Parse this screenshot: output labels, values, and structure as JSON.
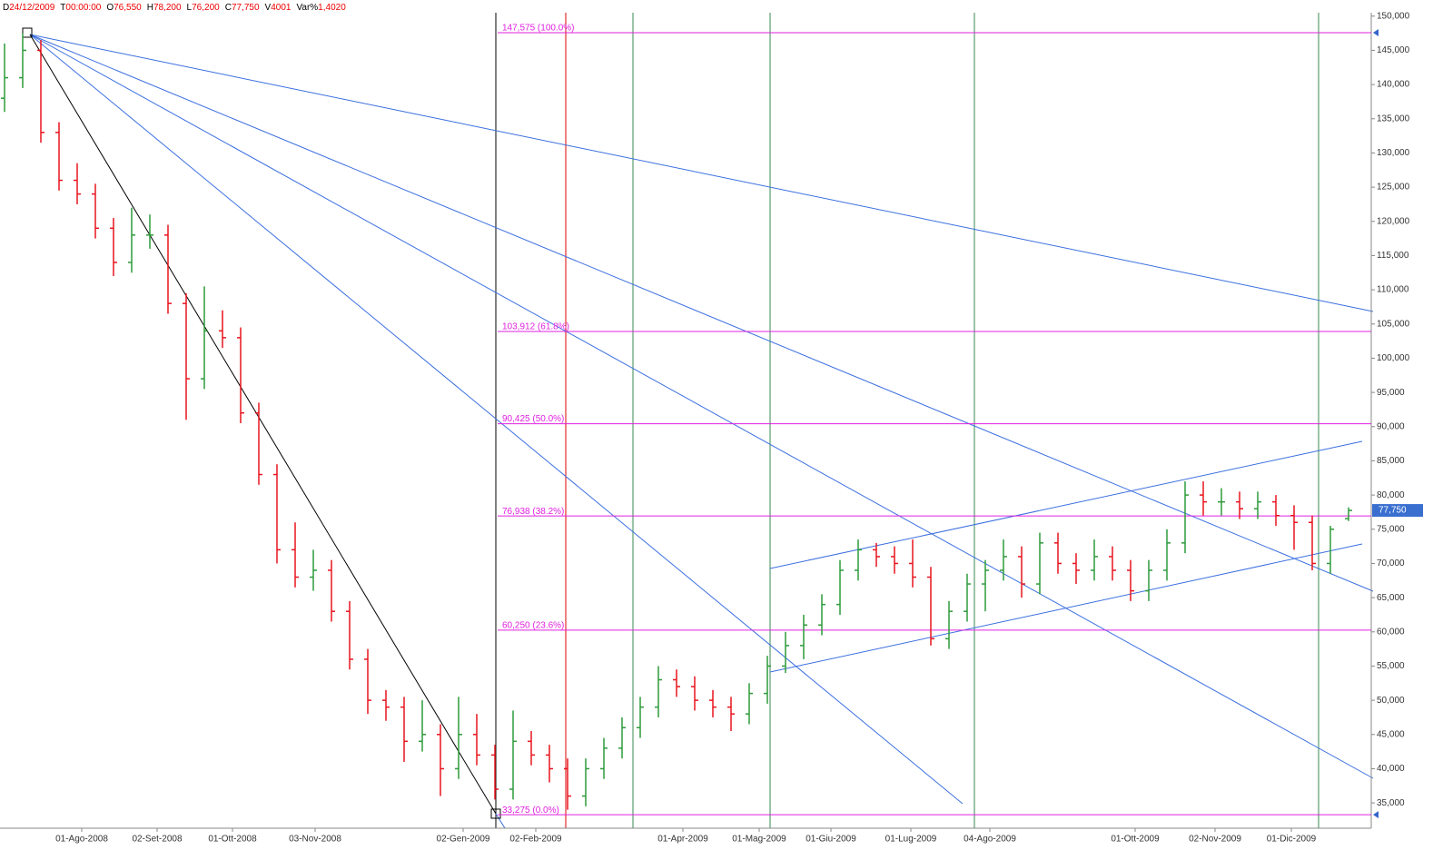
{
  "chart_data": {
    "type": "ohlc",
    "header": [
      {
        "key": "D",
        "value": "24/12/2009"
      },
      {
        "key": "T",
        "value": "00:00:00"
      },
      {
        "key": "O",
        "value": "76,550"
      },
      {
        "key": "H",
        "value": "78,200"
      },
      {
        "key": "L",
        "value": "76,200"
      },
      {
        "key": "C",
        "value": "77,750"
      },
      {
        "key": "V",
        "value": "4001"
      },
      {
        "key": "Var%",
        "value": "1,4020"
      }
    ],
    "up_color": "#2e9a3a",
    "down_color": "#e8141e",
    "open": [
      138,
      141,
      145,
      133,
      126,
      124,
      119,
      114,
      118,
      118,
      108,
      97,
      104,
      103,
      92,
      83,
      72,
      68,
      69,
      63,
      56,
      50,
      49,
      44,
      45,
      40,
      45,
      42,
      37,
      44,
      42,
      40,
      36,
      40,
      43,
      46,
      49,
      53,
      52,
      50,
      49,
      48,
      51,
      55,
      58,
      61,
      64,
      69,
      72,
      71,
      70,
      68,
      59,
      63,
      67,
      69,
      71,
      67,
      73,
      70,
      69,
      71,
      69,
      66,
      69,
      73,
      80,
      79,
      79,
      78,
      79,
      77,
      76,
      70,
      76.55
    ],
    "high": [
      146,
      147.5,
      146.5,
      134.5,
      128.5,
      125.5,
      120.5,
      122,
      121,
      119.5,
      109.5,
      110.5,
      107,
      104.5,
      93.5,
      84.5,
      76,
      72,
      70.5,
      64.5,
      57.5,
      51.5,
      50.5,
      50,
      46.5,
      50.5,
      48,
      43.5,
      48.5,
      45.5,
      43.5,
      41.5,
      41.5,
      44.5,
      47.5,
      50.5,
      55,
      54.5,
      53.5,
      51.5,
      50.5,
      52.5,
      56.5,
      60,
      62.5,
      65.5,
      70.5,
      73.5,
      73,
      72.5,
      73.5,
      69.5,
      64.5,
      68.5,
      70.5,
      73.5,
      72.5,
      74.5,
      74.5,
      71.5,
      73.5,
      72.5,
      70.5,
      70.5,
      75,
      82,
      82,
      81,
      80.5,
      80.5,
      80,
      78.5,
      77,
      75.5,
      78.2
    ],
    "low": [
      136,
      139.5,
      131.5,
      124.5,
      122.5,
      117.5,
      112,
      112.5,
      116,
      106.5,
      91,
      95.5,
      101.5,
      90.5,
      81.5,
      70,
      66.5,
      66,
      61.5,
      54.5,
      48,
      47,
      41,
      42.5,
      36,
      38.5,
      40.5,
      35.5,
      35.5,
      40.5,
      38,
      34,
      34.5,
      38.5,
      41.5,
      44.5,
      47.5,
      50.5,
      48.5,
      47.5,
      45.5,
      46.5,
      49.5,
      54,
      56,
      59.5,
      62.5,
      67.5,
      69.5,
      68.5,
      66.5,
      58,
      57.5,
      61.5,
      63,
      67.5,
      65,
      65.5,
      68.5,
      67,
      67.5,
      67.5,
      64.5,
      64.5,
      67.5,
      71.5,
      77,
      77,
      76.5,
      76.5,
      75.5,
      72,
      69,
      68.5,
      76.2
    ],
    "close": [
      141,
      145,
      133,
      126,
      124,
      119,
      114,
      118,
      118,
      108,
      97,
      104,
      103,
      92,
      83,
      72,
      68,
      69,
      63,
      56,
      50,
      49,
      44,
      45,
      40,
      45,
      42,
      37,
      44,
      42,
      40,
      36,
      40,
      43,
      46,
      49,
      53,
      52,
      50,
      49,
      48,
      51,
      55,
      58,
      61,
      64,
      69,
      72,
      71,
      70,
      68,
      59,
      63,
      67,
      69,
      71,
      67,
      73,
      70,
      69,
      71,
      69,
      66,
      69,
      73,
      80,
      79,
      79,
      78,
      79,
      77,
      76,
      70,
      75,
      77.75
    ],
    "xlim": [
      -0.25,
      75.25
    ],
    "xticks": [
      {
        "value": 4.25,
        "label": "01-Ago-2008"
      },
      {
        "value": 8.4,
        "label": "02-Set-2008"
      },
      {
        "value": 12.55,
        "label": "01-Ott-2008"
      },
      {
        "value": 17.1,
        "label": "03-Nov-2008"
      },
      {
        "value": 25.25,
        "label": "02-Gen-2009"
      },
      {
        "value": 29.25,
        "label": "02-Feb-2009"
      },
      {
        "value": 37.35,
        "label": "01-Apr-2009"
      },
      {
        "value": 41.55,
        "label": "01-Mag-2009"
      },
      {
        "value": 45.5,
        "label": "01-Giu-2009"
      },
      {
        "value": 49.9,
        "label": "01-Lug-2009"
      },
      {
        "value": 54.25,
        "label": "04-Ago-2009"
      },
      {
        "value": 62.25,
        "label": "01-Ott-2009"
      },
      {
        "value": 66.65,
        "label": "02-Nov-2009"
      },
      {
        "value": 70.85,
        "label": "01-Dic-2009"
      }
    ],
    "ylim": [
      31.3,
      150.5
    ],
    "yticks": [
      {
        "value": 35,
        "label": "35,000"
      },
      {
        "value": 40,
        "label": "40,000"
      },
      {
        "value": 45,
        "label": "45,000"
      },
      {
        "value": 50,
        "label": "50,000"
      },
      {
        "value": 55,
        "label": "55,000"
      },
      {
        "value": 60,
        "label": "60,000"
      },
      {
        "value": 65,
        "label": "65,000"
      },
      {
        "value": 70,
        "label": "70,000"
      },
      {
        "value": 75,
        "label": "75,000"
      },
      {
        "value": 80,
        "label": "80,000"
      },
      {
        "value": 85,
        "label": "85,000"
      },
      {
        "value": 90,
        "label": "90,000"
      },
      {
        "value": 95,
        "label": "95,000"
      },
      {
        "value": 100,
        "label": "100,000"
      },
      {
        "value": 105,
        "label": "105,000"
      },
      {
        "value": 110,
        "label": "110,000"
      },
      {
        "value": 115,
        "label": "115,000"
      },
      {
        "value": 120,
        "label": "120,000"
      },
      {
        "value": 125,
        "label": "125,000"
      },
      {
        "value": 130,
        "label": "130,000"
      },
      {
        "value": 135,
        "label": "135,000"
      },
      {
        "value": 140,
        "label": "140,000"
      },
      {
        "value": 145,
        "label": "145,000"
      },
      {
        "value": 150,
        "label": "150,000"
      }
    ],
    "fib_color": "#e020e0",
    "fib_levels": [
      {
        "value": 147.575,
        "label": "147,575 (100.0%)"
      },
      {
        "value": 103.912,
        "label": "103,912 (61.8%)"
      },
      {
        "value": 90.425,
        "label": "90,425 (50.0%)"
      },
      {
        "value": 76.938,
        "label": "76,938 (38.2%)"
      },
      {
        "value": 60.25,
        "label": "60,250 (23.6%)"
      },
      {
        "value": 33.275,
        "label": "33,275 (0.0%)"
      }
    ],
    "last_price": {
      "value": 77.75,
      "label": "77,750"
    }
  }
}
